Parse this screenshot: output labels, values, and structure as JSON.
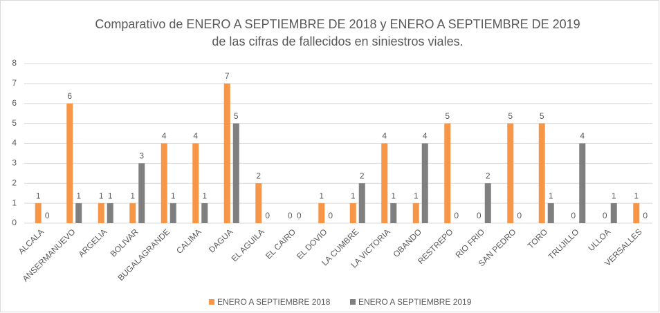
{
  "chart_data": {
    "type": "bar",
    "title": [
      "Comparativo de ENERO A SEPTIEMBRE DE 2018 y ENERO A SEPTIEMBRE DE 2019",
      "de las cifras de fallecidos en siniestros viales."
    ],
    "categories": [
      "ALCALA",
      "ANSERMANUEVO",
      "ARGELIA",
      "BOLIVAR",
      "BUGALAGRANDE",
      "CALIMA",
      "DAGUA",
      "EL AGUILA",
      "EL CAIRO",
      "EL DOVIO",
      "LA CUMBRE",
      "LA VICTORIA",
      "OBANDO",
      "RESTREPO",
      "RIO FRIO",
      "SAN PEDRO",
      "TORO",
      "TRUJILLO",
      "ULLOA",
      "VERSALLES"
    ],
    "series": [
      {
        "name": "ENERO A SEPTIEMBRE 2018",
        "color": "#f79646",
        "values": [
          1,
          6,
          1,
          1,
          4,
          4,
          7,
          2,
          0,
          1,
          1,
          4,
          1,
          5,
          0,
          5,
          5,
          0,
          0,
          1
        ]
      },
      {
        "name": "ENERO A SEPTIEMBRE 2019",
        "color": "#7f7f7f",
        "values": [
          0,
          1,
          1,
          3,
          1,
          1,
          5,
          0,
          0,
          0,
          2,
          1,
          4,
          0,
          2,
          0,
          1,
          4,
          1,
          0
        ]
      }
    ],
    "ylim": [
      0,
      8
    ],
    "yticks": [
      0,
      1,
      2,
      3,
      4,
      5,
      6,
      7,
      8
    ],
    "grid": true,
    "legend": "bottom"
  }
}
